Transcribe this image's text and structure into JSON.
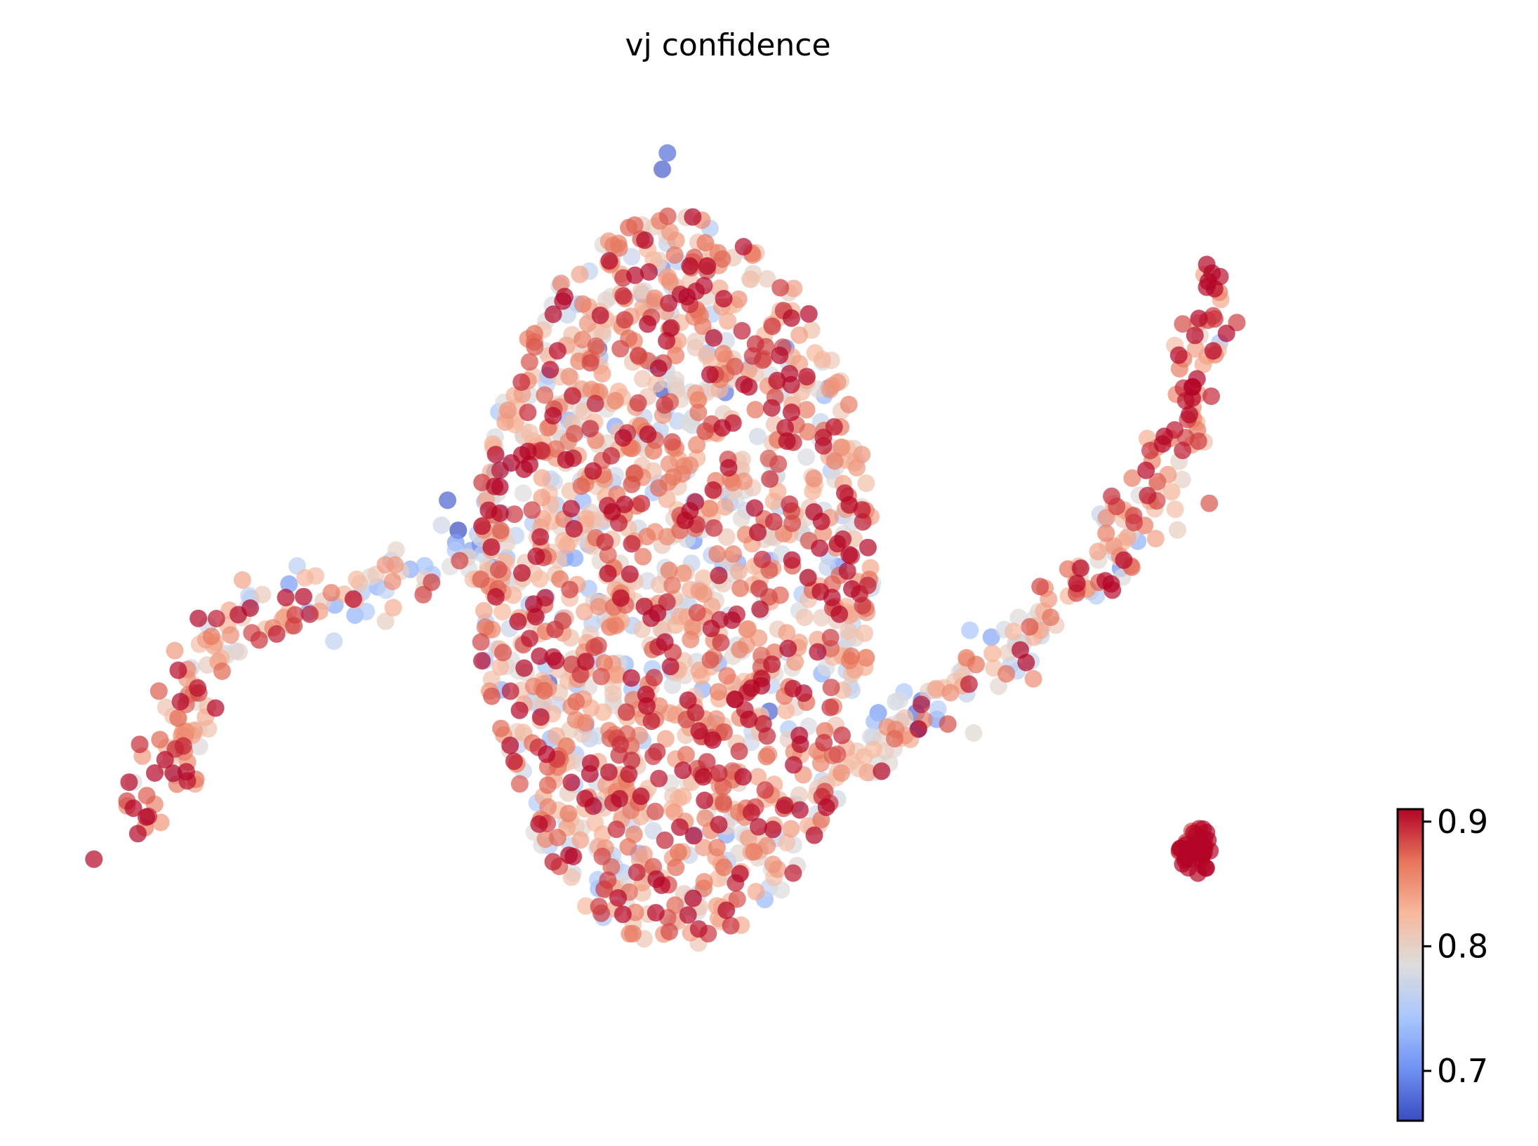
{
  "chart_data": {
    "type": "scatter",
    "title": "vj confidence",
    "xlabel": "",
    "ylabel": "",
    "axes_visible": false,
    "colormap": "coolwarm",
    "colormap_stops": [
      "#3b4cc0",
      "#6f92f3",
      "#aac7fd",
      "#dddddd",
      "#f7b89c",
      "#e7745b",
      "#b40426"
    ],
    "point_alpha": 0.7,
    "colorbar": {
      "position": "bottom-right",
      "range": [
        0.66,
        0.91
      ],
      "ticks": [
        {
          "value": 0.7,
          "label": "0.7"
        },
        {
          "value": 0.8,
          "label": "0.8"
        },
        {
          "value": 0.9,
          "label": "0.9"
        }
      ]
    },
    "xlim": [
      0,
      100
    ],
    "ylim": [
      0,
      100
    ],
    "clusters": [
      {
        "name": "central blob",
        "n": 1500,
        "cx": 46,
        "cy": 52,
        "rx": 15.5,
        "ry": 38,
        "mean": 0.835,
        "sd": 0.055
      },
      {
        "name": "left arm",
        "path": [
          [
            4,
            27
          ],
          [
            8,
            36
          ],
          [
            10,
            47
          ],
          [
            17,
            50
          ],
          [
            24,
            51
          ],
          [
            31,
            55
          ],
          [
            32,
            63
          ]
        ],
        "n": 180,
        "width": 2.4,
        "start_mean": 0.89,
        "end_mean": 0.76,
        "sd": 0.055
      },
      {
        "name": "right arm",
        "path": [
          [
            88,
            83
          ],
          [
            86,
            68
          ],
          [
            81,
            57
          ],
          [
            76,
            48
          ],
          [
            71,
            44
          ],
          [
            64,
            38
          ],
          [
            60,
            32
          ]
        ],
        "n": 220,
        "width": 2.2,
        "start_mean": 0.9,
        "end_mean": 0.78,
        "sd": 0.05
      },
      {
        "name": "right island",
        "n": 45,
        "cx": 86.5,
        "cy": 24,
        "rx": 1.3,
        "ry": 2.5,
        "mean": 0.905,
        "sd": 0.015
      }
    ],
    "sample_points": [
      {
        "x": 45.4,
        "y": 96.5,
        "v": 0.68
      },
      {
        "x": 45.0,
        "y": 94.8,
        "v": 0.67
      },
      {
        "x": 5.0,
        "y": 27.5,
        "v": 0.9
      },
      {
        "x": 87.8,
        "y": 84.0,
        "v": 0.91
      }
    ]
  }
}
